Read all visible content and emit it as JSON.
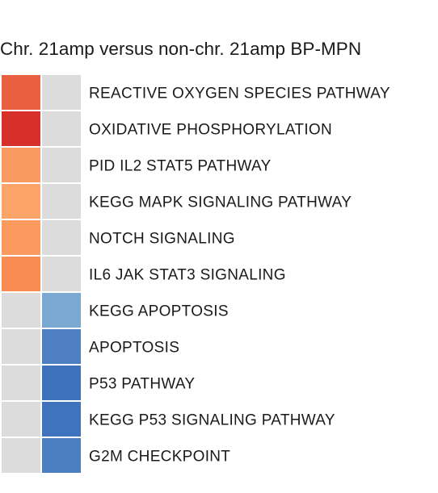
{
  "chart_data": {
    "type": "heatmap",
    "title": "Chr. 21amp versus non-chr. 21amp BP-MPN",
    "columns": [
      "",
      ""
    ],
    "rows": [
      "REACTIVE OXYGEN SPECIES PATHWAY",
      "OXIDATIVE PHOSPHORYLATION",
      "PID IL2 STAT5 PATHWAY",
      "KEGG MAPK SIGNALING PATHWAY",
      "NOTCH SIGNALING",
      "IL6 JAK STAT3 SIGNALING",
      "KEGG APOPTOSIS",
      "APOPTOSIS",
      "P53 PATHWAY",
      "KEGG P53 SIGNALING PATHWAY",
      "G2M CHECKPOINT"
    ],
    "cells": [
      [
        "#e8603f",
        "#dcdcdc"
      ],
      [
        "#d7302b",
        "#dcdcdc"
      ],
      [
        "#f99a61",
        "#dcdcdc"
      ],
      [
        "#fba468",
        "#dcdcdc"
      ],
      [
        "#fa9a5f",
        "#dcdcdc"
      ],
      [
        "#f98c53",
        "#dcdcdc"
      ],
      [
        "#dcdcdc",
        "#7ba8d2"
      ],
      [
        "#dcdcdc",
        "#4f7fc3"
      ],
      [
        "#dcdcdc",
        "#3f72bc"
      ],
      [
        "#dcdcdc",
        "#3f73bd"
      ],
      [
        "#dcdcdc",
        "#4c7ec2"
      ]
    ],
    "empty_color": "#dcdcdc",
    "legend": "none"
  }
}
